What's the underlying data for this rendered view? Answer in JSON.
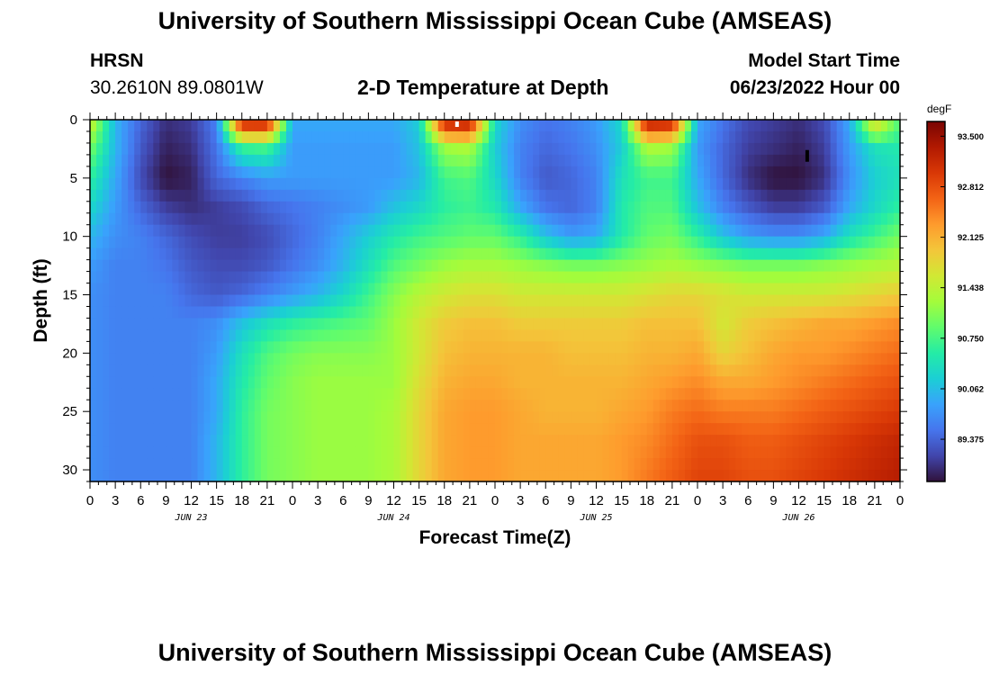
{
  "header": {
    "title": "University of Southern Mississippi Ocean Cube (AMSEAS)",
    "station": "HRSN",
    "coords": "30.2610N  89.0801W",
    "plot_title": "2-D Temperature at Depth",
    "model_start_label": "Model Start Time",
    "model_start_value": "06/23/2022 Hour 00"
  },
  "footer": {
    "title": "University of Southern Mississippi Ocean Cube (AMSEAS)"
  },
  "colors": {
    "colormap": [
      "#30123b",
      "#4145ab",
      "#4675ed",
      "#39a2fc",
      "#1bcfd4",
      "#24eca6",
      "#61fc6c",
      "#a4fc3b",
      "#d1e834",
      "#f3c63a",
      "#fe9b2d",
      "#f36315",
      "#d93806",
      "#b11901",
      "#7a0403"
    ]
  },
  "chart_data": {
    "type": "heatmap",
    "title": "2-D Temperature at Depth",
    "xlabel": "Forecast Time(Z)",
    "ylabel": "Depth (ft)",
    "x_unit": "hours since 06/23/2022 00Z",
    "xlim": [
      0,
      96
    ],
    "ylim": [
      0,
      31
    ],
    "y_inverted": true,
    "x_ticks": [
      0,
      3,
      6,
      9,
      12,
      15,
      18,
      21,
      24,
      27,
      30,
      33,
      36,
      39,
      42,
      45,
      48,
      51,
      54,
      57,
      60,
      63,
      66,
      69,
      72,
      75,
      78,
      81,
      84,
      87,
      90,
      93,
      96
    ],
    "x_tick_labels": [
      "0",
      "3",
      "6",
      "9",
      "12",
      "15",
      "18",
      "21",
      "0",
      "3",
      "6",
      "9",
      "12",
      "15",
      "18",
      "21",
      "0",
      "3",
      "6",
      "9",
      "12",
      "15",
      "18",
      "21",
      "0",
      "3",
      "6",
      "9",
      "12",
      "15",
      "18",
      "21",
      "0"
    ],
    "day_labels": [
      {
        "x": 12,
        "label": "JUN 23"
      },
      {
        "x": 36,
        "label": "JUN 24"
      },
      {
        "x": 60,
        "label": "JUN 25"
      },
      {
        "x": 84,
        "label": "JUN 26"
      }
    ],
    "y_ticks": [
      0,
      5,
      10,
      15,
      20,
      25,
      30
    ],
    "y_tick_labels": [
      "0",
      "5",
      "10",
      "15",
      "20",
      "25",
      "30"
    ],
    "colorbar": {
      "unit": "degF",
      "min": 88.8,
      "max": 93.7,
      "ticks": [
        93.5,
        92.812,
        92.125,
        91.438,
        90.75,
        90.062,
        89.375
      ],
      "tick_labels": [
        "93.500",
        "92.812",
        "92.125",
        "91.438",
        "90.750",
        "90.062",
        "89.375"
      ]
    },
    "grid_x_hours": [
      0,
      3,
      6,
      9,
      12,
      15,
      18,
      21,
      24,
      27,
      30,
      33,
      36,
      39,
      42,
      45,
      48,
      51,
      54,
      57,
      60,
      63,
      66,
      69,
      72,
      75,
      78,
      81,
      84,
      87,
      90,
      93,
      96
    ],
    "grid_depths_ft": [
      0,
      2.5,
      5,
      7.5,
      10,
      12.5,
      15,
      17.5,
      20,
      22.5,
      25,
      27.5,
      30.5
    ],
    "temperature_degF": [
      [
        91.6,
        90.0,
        89.4,
        89.0,
        89.1,
        89.6,
        93.5,
        93.5,
        89.9,
        89.9,
        89.9,
        89.9,
        89.9,
        90.2,
        93.4,
        93.5,
        90.3,
        89.7,
        89.5,
        89.6,
        89.8,
        90.3,
        93.5,
        93.4,
        89.9,
        89.5,
        89.2,
        89.1,
        89.0,
        89.2,
        89.9,
        91.9,
        90.8
      ],
      [
        91.0,
        90.0,
        89.3,
        88.9,
        89.0,
        89.5,
        90.6,
        90.7,
        89.8,
        89.8,
        89.8,
        89.8,
        89.8,
        90.1,
        91.2,
        91.3,
        90.2,
        89.6,
        89.4,
        89.5,
        89.7,
        90.2,
        91.3,
        91.2,
        89.8,
        89.4,
        89.1,
        89.0,
        88.9,
        89.1,
        89.8,
        90.4,
        90.5
      ],
      [
        90.6,
        89.9,
        89.2,
        88.8,
        88.9,
        89.4,
        89.6,
        89.8,
        89.8,
        89.8,
        89.8,
        89.8,
        89.8,
        90.0,
        90.7,
        90.8,
        90.3,
        89.6,
        89.3,
        89.4,
        89.6,
        90.4,
        90.7,
        90.7,
        89.9,
        89.4,
        89.0,
        88.8,
        88.8,
        89.0,
        89.7,
        90.2,
        90.4
      ],
      [
        90.3,
        89.8,
        89.4,
        89.1,
        89.0,
        89.1,
        89.2,
        89.4,
        89.5,
        89.6,
        89.7,
        89.8,
        90.1,
        90.3,
        90.6,
        90.7,
        90.5,
        89.9,
        89.5,
        89.4,
        89.6,
        90.5,
        90.8,
        90.8,
        90.1,
        89.6,
        89.3,
        89.1,
        89.1,
        89.3,
        89.9,
        90.3,
        90.6
      ],
      [
        90.0,
        89.7,
        89.6,
        89.4,
        89.2,
        89.1,
        89.1,
        89.2,
        89.4,
        89.6,
        89.9,
        90.2,
        90.5,
        90.7,
        90.8,
        90.9,
        90.9,
        90.6,
        90.1,
        89.8,
        89.9,
        90.5,
        90.9,
        91.0,
        90.6,
        90.1,
        89.8,
        89.7,
        89.7,
        89.9,
        90.4,
        90.7,
        91.0
      ],
      [
        89.8,
        89.6,
        89.6,
        89.5,
        89.3,
        89.2,
        89.2,
        89.3,
        89.5,
        89.7,
        90.0,
        90.4,
        90.8,
        91.0,
        91.2,
        91.3,
        91.3,
        91.2,
        91.1,
        91.0,
        91.0,
        91.1,
        91.2,
        91.3,
        91.2,
        91.1,
        91.0,
        91.0,
        91.0,
        91.1,
        91.2,
        91.3,
        91.4
      ],
      [
        89.7,
        89.6,
        89.6,
        89.6,
        89.4,
        89.3,
        89.4,
        89.6,
        89.8,
        90.0,
        90.3,
        90.7,
        91.1,
        91.4,
        91.6,
        91.7,
        91.7,
        91.6,
        91.6,
        91.6,
        91.6,
        91.6,
        91.7,
        91.8,
        91.8,
        91.7,
        91.6,
        91.6,
        91.6,
        91.6,
        91.7,
        91.8,
        91.9
      ],
      [
        89.7,
        89.6,
        89.6,
        89.6,
        89.6,
        89.7,
        90.1,
        90.4,
        90.6,
        90.7,
        90.8,
        90.9,
        91.2,
        91.6,
        91.9,
        92.0,
        92.0,
        91.9,
        91.9,
        91.9,
        91.9,
        91.9,
        92.0,
        92.0,
        92.0,
        91.6,
        91.9,
        92.0,
        92.1,
        92.2,
        92.2,
        92.3,
        92.4
      ],
      [
        89.7,
        89.6,
        89.6,
        89.6,
        89.6,
        89.8,
        90.4,
        90.8,
        91.0,
        91.1,
        91.1,
        91.1,
        91.2,
        91.6,
        92.0,
        92.1,
        92.1,
        92.1,
        92.1,
        92.0,
        92.0,
        92.0,
        92.1,
        92.1,
        92.2,
        91.8,
        92.0,
        92.2,
        92.3,
        92.3,
        92.4,
        92.5,
        92.6
      ],
      [
        89.7,
        89.6,
        89.6,
        89.6,
        89.6,
        89.9,
        90.5,
        90.9,
        91.1,
        91.2,
        91.2,
        91.2,
        91.2,
        91.7,
        92.1,
        92.2,
        92.2,
        92.1,
        92.1,
        92.1,
        92.1,
        92.1,
        92.2,
        92.3,
        92.4,
        92.2,
        92.2,
        92.3,
        92.4,
        92.5,
        92.6,
        92.7,
        92.8
      ],
      [
        89.7,
        89.6,
        89.6,
        89.6,
        89.6,
        89.9,
        90.6,
        91.0,
        91.1,
        91.2,
        91.2,
        91.2,
        91.3,
        91.8,
        92.2,
        92.3,
        92.3,
        92.2,
        92.1,
        92.1,
        92.1,
        92.2,
        92.3,
        92.5,
        92.6,
        92.5,
        92.5,
        92.5,
        92.6,
        92.7,
        92.8,
        92.9,
        93.0
      ],
      [
        89.7,
        89.6,
        89.6,
        89.6,
        89.6,
        90.0,
        90.6,
        91.0,
        91.1,
        91.2,
        91.2,
        91.2,
        91.3,
        91.8,
        92.2,
        92.3,
        92.3,
        92.2,
        92.2,
        92.2,
        92.2,
        92.3,
        92.4,
        92.6,
        92.8,
        92.8,
        92.7,
        92.7,
        92.8,
        92.9,
        93.0,
        93.1,
        93.2
      ],
      [
        89.7,
        89.6,
        89.6,
        89.6,
        89.6,
        90.0,
        90.6,
        91.0,
        91.1,
        91.2,
        91.2,
        91.2,
        91.3,
        91.8,
        92.2,
        92.3,
        92.3,
        92.2,
        92.2,
        92.2,
        92.2,
        92.3,
        92.5,
        92.7,
        92.9,
        92.9,
        92.8,
        92.8,
        92.9,
        93.0,
        93.1,
        93.2,
        93.3
      ]
    ]
  }
}
